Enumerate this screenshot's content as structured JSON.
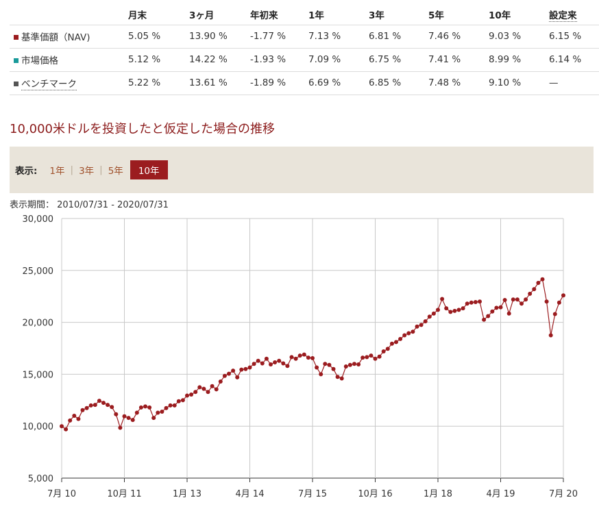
{
  "table": {
    "headers": [
      "",
      "月末",
      "3ヶ月",
      "年初来",
      "1年",
      "3年",
      "5年",
      "10年",
      "設定来"
    ],
    "rows": [
      {
        "label": "基準価額（NAV)",
        "color": "#9b1c1f",
        "values": [
          "5.05 %",
          "13.90 %",
          "-1.77 %",
          "7.13 %",
          "6.81 %",
          "7.46 %",
          "9.03 %",
          "6.15 %"
        ]
      },
      {
        "label": "市場価格",
        "color": "#1a9a9a",
        "values": [
          "5.12 %",
          "14.22 %",
          "-1.93 %",
          "7.09 %",
          "6.75 %",
          "7.41 %",
          "8.99 %",
          "6.14 %"
        ]
      },
      {
        "label": "ベンチマーク",
        "color": "#555555",
        "values": [
          "5.22 %",
          "13.61 %",
          "-1.89 %",
          "6.69 %",
          "6.85 %",
          "7.48 %",
          "9.10 %",
          "—"
        ]
      }
    ]
  },
  "section_title": "10,000米ドルを投資したと仮定した場合の推移",
  "range": {
    "label": "表示:",
    "options": [
      "1年",
      "3年",
      "5年",
      "10年"
    ],
    "selected": "10年"
  },
  "period_text": "表示期間： 2010/07/31 - 2020/07/31",
  "chart_data": {
    "type": "line",
    "title": "",
    "xlabel": "",
    "ylabel": "",
    "ylim": [
      5000,
      30000
    ],
    "y_ticks": [
      5000,
      10000,
      15000,
      20000,
      25000,
      30000
    ],
    "y_tick_labels": [
      "5,000",
      "10,000",
      "15,000",
      "20,000",
      "25,000",
      "30,000"
    ],
    "x_ticks": [
      {
        "label": "7月 10",
        "date": "2010-07"
      },
      {
        "label": "10月 11",
        "date": "2011-10"
      },
      {
        "label": "1月 13",
        "date": "2013-01"
      },
      {
        "label": "4月 14",
        "date": "2014-04"
      },
      {
        "label": "7月 15",
        "date": "2015-07"
      },
      {
        "label": "10月 16",
        "date": "2016-10"
      },
      {
        "label": "1月 18",
        "date": "2018-01"
      },
      {
        "label": "4月 19",
        "date": "2019-04"
      },
      {
        "label": "7月 20",
        "date": "2020-07"
      }
    ],
    "grid": true,
    "line_color": "#9b1c1f",
    "series": [
      {
        "name": "基準価額（NAV)",
        "x": [
          "2010-07",
          "2010-08",
          "2010-09",
          "2010-10",
          "2010-11",
          "2010-12",
          "2011-01",
          "2011-02",
          "2011-03",
          "2011-04",
          "2011-05",
          "2011-06",
          "2011-07",
          "2011-08",
          "2011-09",
          "2011-10",
          "2011-11",
          "2011-12",
          "2012-01",
          "2012-02",
          "2012-03",
          "2012-04",
          "2012-05",
          "2012-06",
          "2012-07",
          "2012-08",
          "2012-09",
          "2012-10",
          "2012-11",
          "2012-12",
          "2013-01",
          "2013-02",
          "2013-03",
          "2013-04",
          "2013-05",
          "2013-06",
          "2013-07",
          "2013-08",
          "2013-09",
          "2013-10",
          "2013-11",
          "2013-12",
          "2014-01",
          "2014-02",
          "2014-03",
          "2014-04",
          "2014-05",
          "2014-06",
          "2014-07",
          "2014-08",
          "2014-09",
          "2014-10",
          "2014-11",
          "2014-12",
          "2015-01",
          "2015-02",
          "2015-03",
          "2015-04",
          "2015-05",
          "2015-06",
          "2015-07",
          "2015-08",
          "2015-09",
          "2015-10",
          "2015-11",
          "2015-12",
          "2016-01",
          "2016-02",
          "2016-03",
          "2016-04",
          "2016-05",
          "2016-06",
          "2016-07",
          "2016-08",
          "2016-09",
          "2016-10",
          "2016-11",
          "2016-12",
          "2017-01",
          "2017-02",
          "2017-03",
          "2017-04",
          "2017-05",
          "2017-06",
          "2017-07",
          "2017-08",
          "2017-09",
          "2017-10",
          "2017-11",
          "2017-12",
          "2018-01",
          "2018-02",
          "2018-03",
          "2018-04",
          "2018-05",
          "2018-06",
          "2018-07",
          "2018-08",
          "2018-09",
          "2018-10",
          "2018-11",
          "2018-12",
          "2019-01",
          "2019-02",
          "2019-03",
          "2019-04",
          "2019-05",
          "2019-06",
          "2019-07",
          "2019-08",
          "2019-09",
          "2019-10",
          "2019-11",
          "2019-12",
          "2020-01",
          "2020-02",
          "2020-03",
          "2020-04",
          "2020-05",
          "2020-06",
          "2020-07"
        ],
        "values": [
          10000,
          9700,
          10550,
          11000,
          10700,
          11550,
          11750,
          12000,
          12050,
          12450,
          12250,
          12050,
          11850,
          11150,
          9850,
          10950,
          10800,
          10600,
          11300,
          11800,
          11900,
          11800,
          10800,
          11300,
          11400,
          11750,
          12000,
          12000,
          12400,
          12500,
          12950,
          13050,
          13300,
          13750,
          13600,
          13300,
          13850,
          13550,
          14300,
          14850,
          15050,
          15350,
          14700,
          15450,
          15500,
          15650,
          16000,
          16300,
          16050,
          16500,
          15950,
          16150,
          16300,
          16050,
          15800,
          16650,
          16500,
          16800,
          16900,
          16600,
          16550,
          15650,
          15000,
          16000,
          15900,
          15500,
          14750,
          14600,
          15750,
          15900,
          16000,
          15950,
          16600,
          16650,
          16800,
          16500,
          16700,
          17200,
          17450,
          17950,
          18100,
          18400,
          18750,
          18950,
          19100,
          19600,
          19750,
          20100,
          20550,
          20850,
          21200,
          22250,
          21350,
          21000,
          21100,
          21200,
          21350,
          21800,
          21900,
          21950,
          22000,
          20250,
          20600,
          21050,
          21400,
          21450,
          22150,
          20850,
          22200,
          22200,
          21800,
          22200,
          22750,
          23200,
          23800,
          24150,
          22000,
          18750,
          20800,
          21900,
          22600
        ]
      }
    ]
  }
}
